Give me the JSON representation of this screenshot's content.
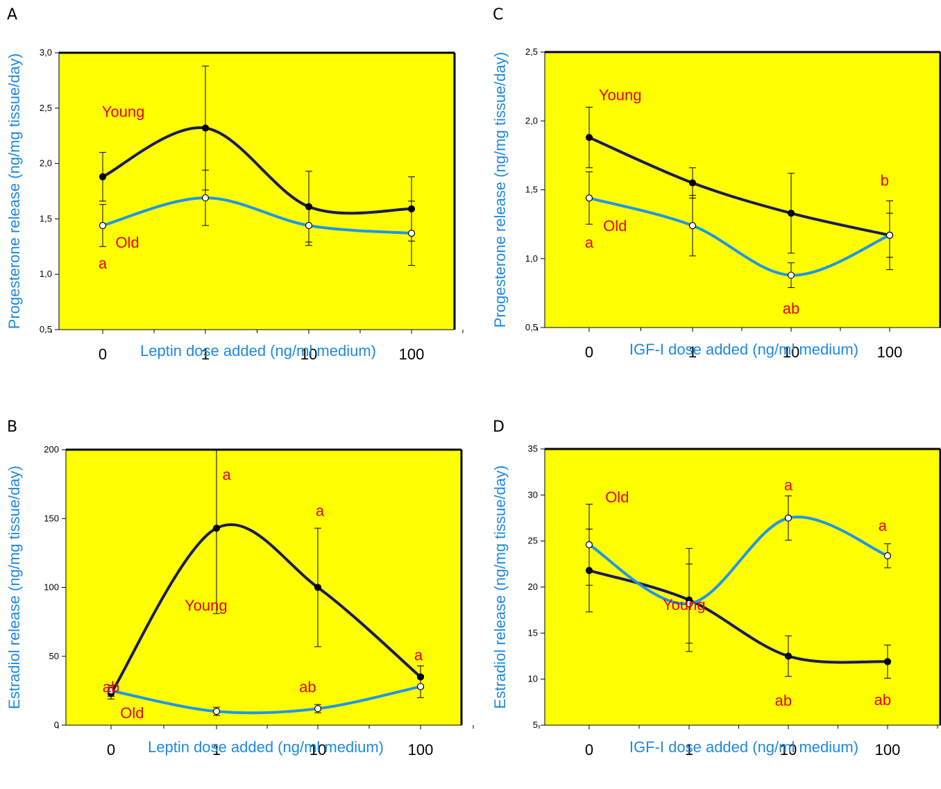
{
  "colors": {
    "plot_background": "#ffff00",
    "young_line": "#1a1a5e",
    "old_line": "#2196e6",
    "axis_title": "#1e88e5",
    "annotation": "#e8000b"
  },
  "chart_data": [
    {
      "panel": "A",
      "type": "line",
      "xlabel": "Leptin dose added (ng/ml medium)",
      "ylabel": "Progesterone release (ng/mg tissue/day)",
      "categories": [
        "0",
        "1",
        "10",
        "100"
      ],
      "ylim": [
        0.5,
        3.0
      ],
      "yticks": [
        0.5,
        1.0,
        1.5,
        2.0,
        2.5,
        3.0
      ],
      "ytick_labels": [
        "0,5",
        "1,0",
        "1,5",
        "2,0",
        "2,5",
        "3,0"
      ],
      "series": [
        {
          "name": "Young",
          "marker": "filled",
          "values": [
            1.88,
            2.32,
            1.61,
            1.59
          ],
          "errors": [
            0.22,
            0.56,
            0.32,
            0.29
          ]
        },
        {
          "name": "Old",
          "marker": "open",
          "values": [
            1.44,
            1.69,
            1.44,
            1.37
          ],
          "errors": [
            0.19,
            0.25,
            0.18,
            0.29
          ]
        }
      ],
      "annotations": [
        {
          "text": "Young",
          "x": 0.2,
          "y": 2.42
        },
        {
          "text": "Old",
          "x": 0.24,
          "y": 1.24
        },
        {
          "text": "a",
          "x": 0.0,
          "y": 1.05
        }
      ]
    },
    {
      "panel": "B",
      "type": "line",
      "xlabel": "Leptin dose added (ng/ml medium)",
      "ylabel": "Estradiol release (ng/mg tissue/day)",
      "categories": [
        "0",
        "1",
        "10",
        "100"
      ],
      "ylim": [
        0,
        200
      ],
      "yticks": [
        0,
        50,
        100,
        150,
        200
      ],
      "ytick_labels": [
        "0",
        "50",
        "100",
        "150",
        "200"
      ],
      "series": [
        {
          "name": "Young",
          "marker": "filled",
          "values": [
            23,
            143,
            100,
            35
          ],
          "errors": [
            4,
            62,
            43,
            8
          ]
        },
        {
          "name": "Old",
          "marker": "open",
          "values": [
            25,
            10,
            12,
            28
          ],
          "errors": [
            4,
            3,
            3,
            8
          ]
        }
      ],
      "annotations": [
        {
          "text": "a",
          "x": 1.1,
          "y": 178
        },
        {
          "text": "a",
          "x": 2.02,
          "y": 152
        },
        {
          "text": "Young",
          "x": -0.1,
          "y": 83
        },
        {
          "text": "a",
          "x": 2.98,
          "y": 47
        },
        {
          "text": "ab",
          "x": 0.0,
          "y": 24,
          "anchor": "x1"
        },
        {
          "text": "ab",
          "x": 1.9,
          "y": 24
        },
        {
          "text": "Old",
          "x": 0.2,
          "y": 5
        }
      ]
    },
    {
      "panel": "C",
      "type": "line",
      "xlabel": "IGF-I dose added (ng/ml medium)",
      "ylabel": "Progesterone release (ng/mg tissue/day)",
      "categories": [
        "0",
        "1",
        "10",
        "100"
      ],
      "ylim": [
        0.5,
        2.5
      ],
      "yticks": [
        0.5,
        1.0,
        1.5,
        2.0,
        2.5
      ],
      "ytick_labels": [
        "0,5",
        "1,0",
        "1,5",
        "2,0",
        "2,5"
      ],
      "series": [
        {
          "name": "Young",
          "marker": "filled",
          "values": [
            1.88,
            1.55,
            1.33,
            1.17
          ],
          "errors": [
            0.22,
            0.11,
            0.29,
            0.25
          ]
        },
        {
          "name": "Old",
          "marker": "open",
          "values": [
            1.44,
            1.24,
            0.88,
            1.17
          ],
          "errors": [
            0.19,
            0.22,
            0.09,
            0.16
          ]
        }
      ],
      "annotations": [
        {
          "text": "Young",
          "x": 0.3,
          "y": 2.15
        },
        {
          "text": "b",
          "x": 2.95,
          "y": 1.53
        },
        {
          "text": "Old",
          "x": 0.25,
          "y": 1.2
        },
        {
          "text": "a",
          "x": 0.0,
          "y": 1.08
        },
        {
          "text": "ab",
          "x": 2.0,
          "y": 0.6
        }
      ]
    },
    {
      "panel": "D",
      "type": "line",
      "xlabel": "IGF-I dose added (ng/ml medium)",
      "ylabel": "Estradiol release (ng/mg tissue/day)",
      "categories": [
        "0",
        "1",
        "10",
        "100"
      ],
      "ylim": [
        5,
        35
      ],
      "yticks": [
        5,
        10,
        15,
        20,
        25,
        30,
        35
      ],
      "ytick_labels": [
        "5",
        "10",
        "15",
        "20",
        "25",
        "30",
        "35"
      ],
      "series": [
        {
          "name": "Young",
          "marker": "filled",
          "values": [
            21.8,
            18.6,
            12.5,
            11.9
          ],
          "errors": [
            4.5,
            5.6,
            2.2,
            1.8
          ]
        },
        {
          "name": "Old",
          "marker": "open",
          "values": [
            24.6,
            18.2,
            27.5,
            23.4
          ],
          "errors": [
            4.4,
            4.3,
            2.4,
            1.3
          ]
        }
      ],
      "annotations": [
        {
          "text": "a",
          "x": 2.0,
          "y": 30.5
        },
        {
          "text": "Old",
          "x": 0.28,
          "y": 29.2
        },
        {
          "text": "a",
          "x": 2.95,
          "y": 26.1
        },
        {
          "text": "Young",
          "x": -0.05,
          "y": 17.5
        },
        {
          "text": "ab",
          "x": 1.95,
          "y": 7.1
        },
        {
          "text": "ab",
          "x": 2.95,
          "y": 7.2
        }
      ]
    }
  ]
}
